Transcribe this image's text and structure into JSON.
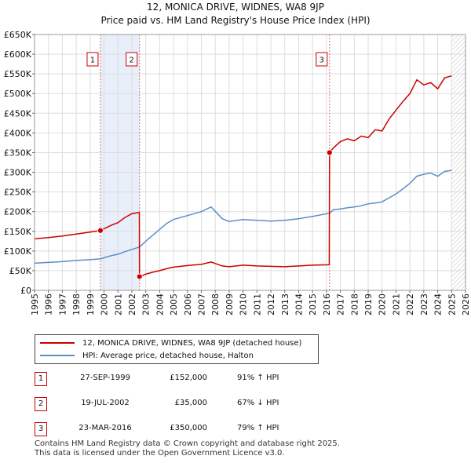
{
  "title_line1": "12, MONICA DRIVE, WIDNES, WA8 9JP",
  "title_line2": "Price paid vs. HM Land Registry's House Price Index (HPI)",
  "chart_data": {
    "type": "line",
    "title": "12, MONICA DRIVE, WIDNES, WA8 9JP — Price paid vs. HM Land Registry's House Price Index (HPI)",
    "xlim": [
      1995,
      2026
    ],
    "ylim": [
      0,
      650000
    ],
    "x_ticks": [
      1995,
      1996,
      1997,
      1998,
      1999,
      2000,
      2001,
      2002,
      2003,
      2004,
      2005,
      2006,
      2007,
      2008,
      2009,
      2010,
      2011,
      2012,
      2013,
      2014,
      2015,
      2016,
      2017,
      2018,
      2019,
      2020,
      2021,
      2022,
      2023,
      2024,
      2025,
      2026
    ],
    "y_ticks": [
      0,
      50000,
      100000,
      150000,
      200000,
      250000,
      300000,
      350000,
      400000,
      450000,
      500000,
      550000,
      600000,
      650000
    ],
    "y_tick_labels": [
      "£0",
      "£50K",
      "£100K",
      "£150K",
      "£200K",
      "£250K",
      "£300K",
      "£350K",
      "£400K",
      "£450K",
      "£500K",
      "£550K",
      "£600K",
      "£650K"
    ],
    "shaded_spans": [
      [
        1999.74,
        2002.55
      ]
    ],
    "future_hatch_from": 2025.0,
    "series": [
      {
        "name": "12, MONICA DRIVE, WIDNES, WA8 9JP (detached house)",
        "color": "#cc0000",
        "x": [
          1995.0,
          1996.0,
          1997.0,
          1998.0,
          1999.0,
          1999.74,
          2000.5,
          2001.0,
          2001.5,
          2002.0,
          2002.54,
          2002.55,
          2003.0,
          2003.5,
          2004.0,
          2004.5,
          2005.0,
          2006.0,
          2007.0,
          2007.7,
          2008.5,
          2009.0,
          2010.0,
          2011.0,
          2012.0,
          2013.0,
          2014.0,
          2015.0,
          2016.2,
          2016.22,
          2016.5,
          2017.0,
          2017.5,
          2018.0,
          2018.5,
          2019.0,
          2019.5,
          2020.0,
          2020.5,
          2021.0,
          2021.5,
          2022.0,
          2022.5,
          2023.0,
          2023.5,
          2024.0,
          2024.5,
          2025.0
        ],
        "y": [
          131000,
          134000,
          138000,
          143000,
          148000,
          152000,
          165000,
          172000,
          185000,
          195000,
          198000,
          35000,
          41000,
          46000,
          50000,
          55000,
          59000,
          63000,
          66000,
          72000,
          62000,
          60000,
          64000,
          62000,
          61000,
          60000,
          62000,
          64000,
          65000,
          350000,
          362000,
          378000,
          385000,
          380000,
          392000,
          388000,
          408000,
          405000,
          435000,
          458000,
          480000,
          500000,
          535000,
          522000,
          528000,
          512000,
          540000,
          545000
        ]
      },
      {
        "name": "HPI: Average price, detached house, Halton",
        "color": "#5b8ec7",
        "x": [
          1995.0,
          1996.0,
          1997.0,
          1998.0,
          1999.0,
          1999.74,
          2000.5,
          2001.0,
          2001.5,
          2002.0,
          2002.55,
          2003.0,
          2003.5,
          2004.0,
          2004.5,
          2005.0,
          2006.0,
          2007.0,
          2007.7,
          2008.5,
          2009.0,
          2010.0,
          2011.0,
          2012.0,
          2013.0,
          2014.0,
          2015.0,
          2016.22,
          2016.5,
          2017.0,
          2017.5,
          2018.0,
          2018.5,
          2019.0,
          2019.5,
          2020.0,
          2020.5,
          2021.0,
          2021.5,
          2022.0,
          2022.5,
          2023.0,
          2023.5,
          2024.0,
          2024.5,
          2025.0
        ],
        "y": [
          69000,
          71000,
          73000,
          76000,
          78000,
          80000,
          88000,
          92000,
          98000,
          104000,
          110000,
          125000,
          140000,
          155000,
          170000,
          180000,
          190000,
          200000,
          212000,
          182000,
          175000,
          180000,
          178000,
          176000,
          178000,
          182000,
          188000,
          196000,
          205000,
          207000,
          210000,
          212000,
          215000,
          220000,
          222000,
          225000,
          235000,
          245000,
          258000,
          272000,
          290000,
          295000,
          298000,
          290000,
          302000,
          305000
        ]
      }
    ],
    "annotations": [
      {
        "label": "1",
        "x": 1999.74,
        "y": 152000
      },
      {
        "label": "2",
        "x": 2002.55,
        "y": 35000
      },
      {
        "label": "3",
        "x": 2016.22,
        "y": 350000
      }
    ]
  },
  "legend": {
    "property_label": "12, MONICA DRIVE, WIDNES, WA8 9JP (detached house)",
    "hpi_label": "HPI: Average price, detached house, Halton"
  },
  "sales": [
    {
      "num": "1",
      "date": "27-SEP-1999",
      "price": "£152,000",
      "hpi": "91% ↑ HPI"
    },
    {
      "num": "2",
      "date": "19-JUL-2002",
      "price": "£35,000",
      "hpi": "67% ↓ HPI"
    },
    {
      "num": "3",
      "date": "23-MAR-2016",
      "price": "£350,000",
      "hpi": "79% ↑ HPI"
    }
  ],
  "footer": {
    "line1": "Contains HM Land Registry data © Crown copyright and database right 2025.",
    "line2": "This data is licensed under the Open Government Licence v3.0."
  }
}
